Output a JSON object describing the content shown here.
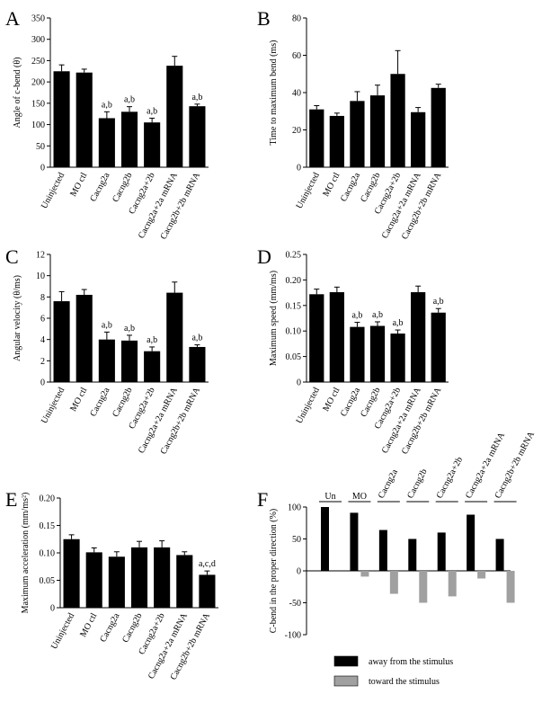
{
  "chart_data": [
    {
      "type": "bar",
      "panel_label": "A",
      "ylabel": "Angle of c-bend (θ)",
      "categories": [
        "Uninjected",
        "MO ctl",
        "Cacng2a",
        "Cacng2b",
        "Cacng2a+2b",
        "Cacng2a+2a mRNA",
        "Cacng2b+2b mRNA"
      ],
      "values": [
        225,
        222,
        115,
        130,
        105,
        238,
        143
      ],
      "errors": [
        15,
        8,
        15,
        12,
        10,
        22,
        5
      ],
      "annotations": [
        "",
        "",
        "a,b",
        "a,b",
        "a,b",
        "",
        "a,b"
      ],
      "ylim": [
        0,
        350
      ],
      "yticks": [
        "0",
        "50",
        "100",
        "150",
        "200",
        "250",
        "300",
        "350"
      ]
    },
    {
      "type": "bar",
      "panel_label": "B",
      "ylabel": "Time to maximum bend (ms)",
      "categories": [
        "Uninjected",
        "MO ctl",
        "Cacng2a",
        "Cacng2b",
        "Cacng2a+2b",
        "Cacng2a+2a mRNA",
        "Cacng2b+2b mRNA"
      ],
      "values": [
        31,
        27.5,
        35.5,
        38.5,
        50,
        29.5,
        42.5
      ],
      "errors": [
        2,
        1.5,
        5,
        5.5,
        12.5,
        2.5,
        2
      ],
      "annotations": [
        "",
        "",
        "",
        "",
        "",
        "",
        ""
      ],
      "ylim": [
        0,
        80
      ],
      "yticks": [
        "0",
        "20",
        "40",
        "60",
        "80"
      ]
    },
    {
      "type": "bar",
      "panel_label": "C",
      "ylabel": "Angular velocity (θ/ms)",
      "categories": [
        "Uninjected",
        "MO ctl",
        "Cacng2a",
        "Cacng2b",
        "Cacng2a+2b",
        "Cacng2a+2a mRNA",
        "Cacng2b+2b mRNA"
      ],
      "values": [
        7.6,
        8.2,
        4.0,
        3.9,
        2.9,
        8.4,
        3.3
      ],
      "errors": [
        0.9,
        0.5,
        0.7,
        0.5,
        0.4,
        1.0,
        0.2
      ],
      "annotations": [
        "",
        "",
        "a,b",
        "a,b",
        "a,b",
        "",
        "a,b"
      ],
      "ylim": [
        0,
        12
      ],
      "yticks": [
        "0",
        "2",
        "4",
        "6",
        "8",
        "10",
        "12"
      ]
    },
    {
      "type": "bar",
      "panel_label": "D",
      "ylabel": "Maximum speed (mm/ms)",
      "categories": [
        "Uninjected",
        "MO ctl",
        "Cacng2a",
        "Cacng2b",
        "Cacng2a+2b",
        "Cacng2a+2a mRNA",
        "Cacng2b+2b mRNA"
      ],
      "values": [
        0.172,
        0.176,
        0.108,
        0.11,
        0.095,
        0.176,
        0.136
      ],
      "errors": [
        0.01,
        0.01,
        0.009,
        0.008,
        0.007,
        0.012,
        0.008
      ],
      "annotations": [
        "",
        "",
        "a,b",
        "a,b",
        "a,b",
        "",
        "a,b"
      ],
      "ylim": [
        0,
        0.25
      ],
      "yticks": [
        "0",
        "0.05",
        "0.10",
        "0.15",
        "0.20",
        "0.25"
      ]
    },
    {
      "type": "bar",
      "panel_label": "E",
      "ylabel": "Maximum acceleration (mm/ms²)",
      "categories": [
        "Uninjected",
        "MO ctl",
        "Cacng2a",
        "Cacng2b",
        "Cacng2a+2b",
        "Cacng2a+2a mRNA",
        "Cacng2b+2b mRNA"
      ],
      "values": [
        0.125,
        0.101,
        0.093,
        0.11,
        0.11,
        0.096,
        0.06
      ],
      "errors": [
        0.008,
        0.008,
        0.009,
        0.011,
        0.012,
        0.006,
        0.007
      ],
      "annotations": [
        "",
        "",
        "",
        "",
        "",
        "",
        "a,c,d"
      ],
      "ylim": [
        0,
        0.2
      ],
      "yticks": [
        "0",
        "0.05",
        "0.10",
        "0.15",
        "0.20"
      ]
    },
    {
      "type": "bar",
      "panel_label": "F",
      "ylabel": "C-bend in the proper direction (%)",
      "groups": [
        "Un",
        "MO",
        "Cacng2a",
        "Cacng2b",
        "Cacng2a+2b",
        "Cacng2a+2a mRNA",
        "Cacng2b+2b mRNA"
      ],
      "series": [
        {
          "name": "away from the stimulus",
          "color": "#000000",
          "values": [
            100,
            91,
            64,
            50,
            60,
            88,
            50
          ]
        },
        {
          "name": "toward the stimulus",
          "color": "#a0a0a0",
          "values": [
            0,
            -9,
            -36,
            -50,
            -40,
            -12,
            -50
          ]
        }
      ],
      "ylim": [
        -100,
        100
      ],
      "yticks": [
        "-100",
        "-50",
        "0",
        "50",
        "100"
      ],
      "legend": "bottom"
    }
  ]
}
